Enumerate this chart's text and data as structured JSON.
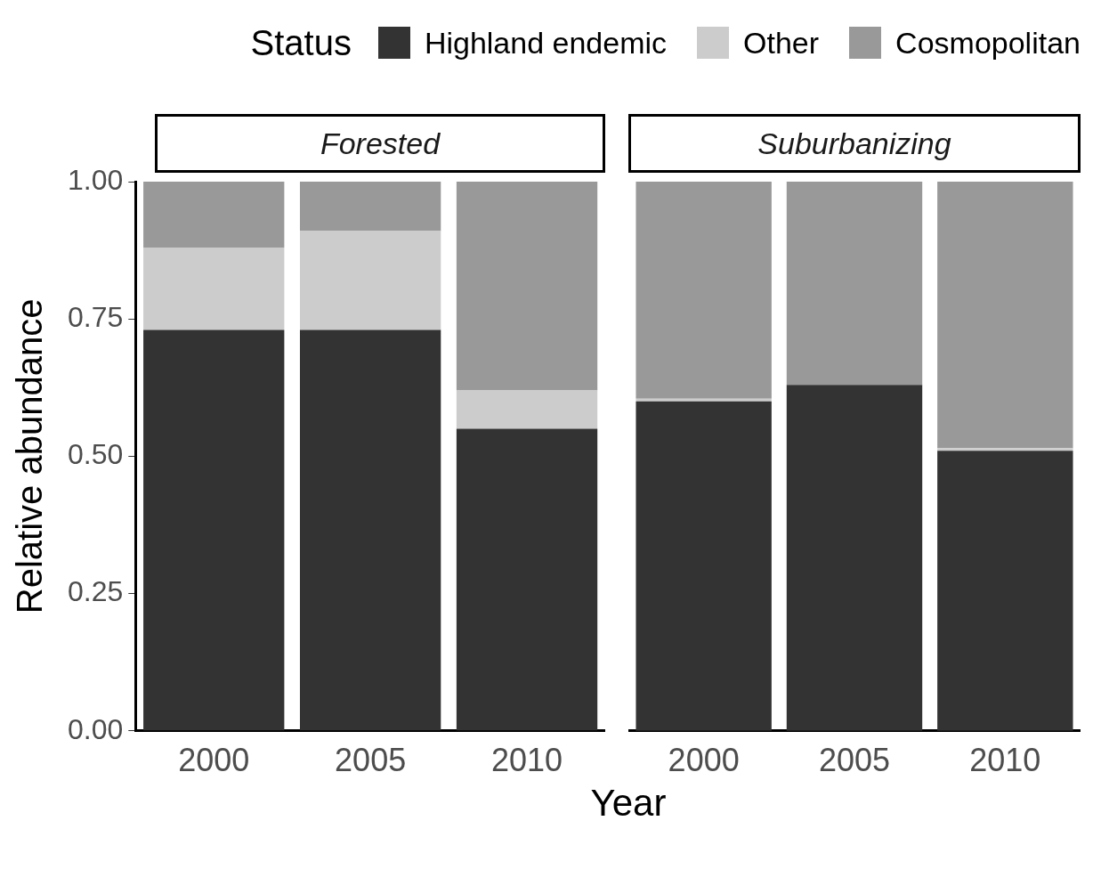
{
  "chart_data": [
    {
      "type": "bar",
      "title": "Forested",
      "xlabel": "Year",
      "ylabel": "Relative abundance",
      "legend_title": "Status",
      "legend": "top",
      "stacked": true,
      "categories": [
        "2000",
        "2005",
        "2010"
      ],
      "ylim": [
        0,
        1
      ],
      "yticks": [
        {
          "value": 0,
          "label": "0.00"
        },
        {
          "value": 0.25,
          "label": "0.25"
        },
        {
          "value": 0.5,
          "label": "0.50"
        },
        {
          "value": 0.75,
          "label": "0.75"
        },
        {
          "value": 1,
          "label": "1.00"
        }
      ],
      "grid": false,
      "series": [
        {
          "name": "Highland endemic",
          "color": "#333333",
          "values": [
            0.73,
            0.73,
            0.55
          ]
        },
        {
          "name": "Other",
          "color": "#cccccc",
          "values": [
            0.15,
            0.18,
            0.07
          ]
        },
        {
          "name": "Cosmopolitan",
          "color": "#999999",
          "values": [
            0.12,
            0.09,
            0.38
          ]
        }
      ]
    },
    {
      "type": "bar",
      "title": "Suburbanizing",
      "stacked": true,
      "categories": [
        "2000",
        "2005",
        "2010"
      ],
      "ylim": [
        0,
        1
      ],
      "tick_labels": "x",
      "grid": false,
      "series": [
        {
          "color": "#333333",
          "values": [
            0.6,
            0.63,
            0.51
          ]
        },
        {
          "color": "#cccccc",
          "values": [
            0.005,
            0,
            0.005
          ]
        },
        {
          "color": "#999999",
          "values": [
            0.395,
            0.37,
            0.485
          ]
        }
      ]
    }
  ]
}
